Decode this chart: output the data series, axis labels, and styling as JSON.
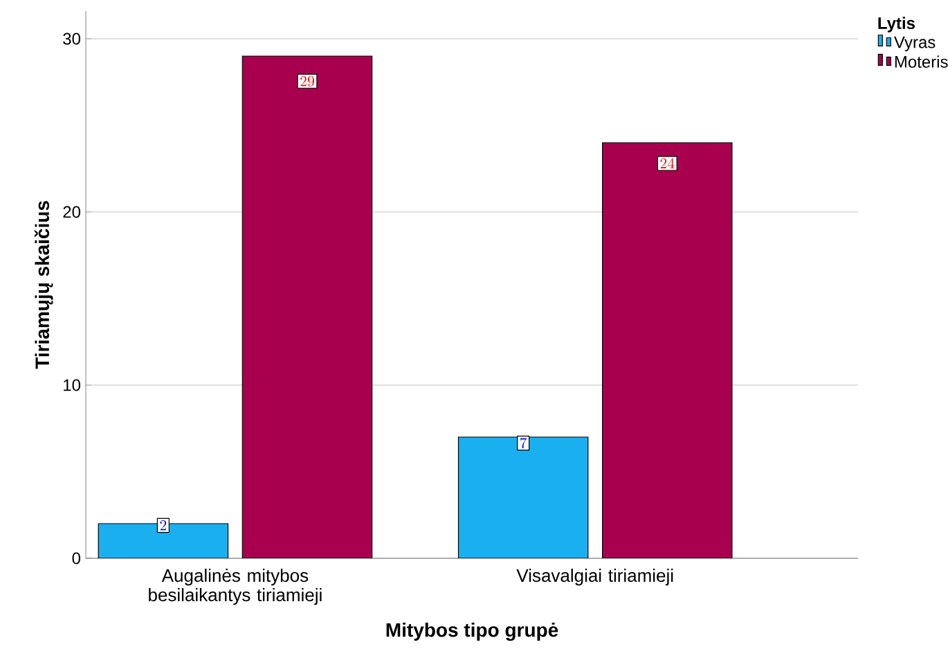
{
  "chart_data": {
    "type": "bar",
    "xlabel": "Mitybos tipo grupė",
    "ylabel": "Tiriamųjų skaičius",
    "legend_title": "Lytis",
    "categories": [
      "Augalinės mitybos besilaikantys tiriamieji",
      "Visavalgiai tiriamieji"
    ],
    "series": [
      {
        "name": "Vyras",
        "color": "#1ab0f0",
        "values": [
          2,
          7
        ]
      },
      {
        "name": "Moteris",
        "color": "#a8004f",
        "values": [
          29,
          24
        ]
      }
    ],
    "ylim": [
      0,
      31.6
    ],
    "yticks": [
      0,
      10,
      20,
      30
    ],
    "grid": "y",
    "legend": "top right",
    "data_labels": true
  }
}
